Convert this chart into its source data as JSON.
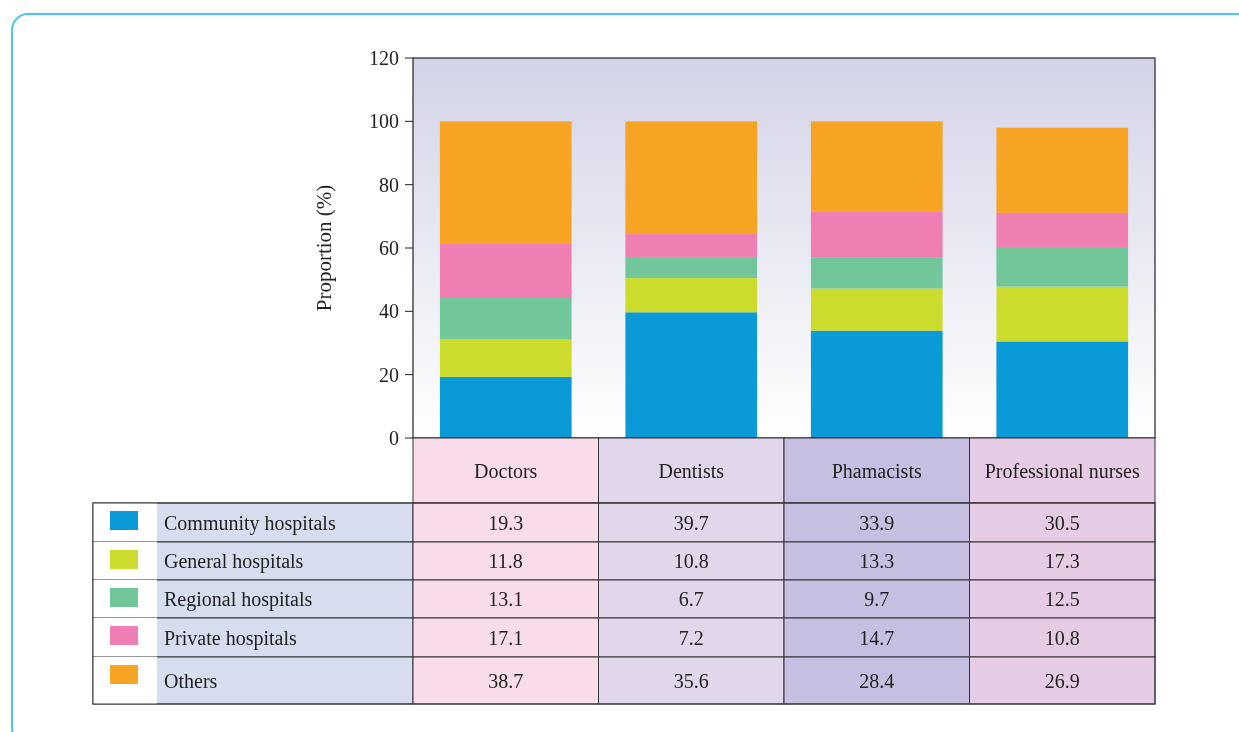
{
  "chart_data": {
    "type": "bar",
    "stacked": true,
    "ylabel": "Proportion (%)",
    "categories": [
      "Doctors",
      "Dentists",
      "Phamacists",
      "Professional nurses"
    ],
    "series": [
      {
        "name": "Community hospitals",
        "color": "#0a9ad8",
        "values": [
          19.3,
          39.7,
          33.9,
          30.5
        ]
      },
      {
        "name": "General hospitals",
        "color": "#cbdc2c",
        "values": [
          11.8,
          10.8,
          13.3,
          17.3
        ]
      },
      {
        "name": "Regional hospitals",
        "color": "#72c79a",
        "values": [
          13.1,
          6.7,
          9.7,
          12.5
        ]
      },
      {
        "name": "Private hospitals",
        "color": "#ef7fb3",
        "values": [
          17.1,
          7.2,
          14.7,
          10.8
        ]
      },
      {
        "name": "Others",
        "color": "#f7a324",
        "values": [
          38.7,
          35.6,
          28.4,
          26.9
        ]
      }
    ],
    "ylim": [
      0,
      120
    ],
    "yticks": [
      0,
      20,
      40,
      60,
      80,
      100,
      120
    ],
    "grid": false,
    "data_labels": true,
    "legend": "bottom"
  }
}
